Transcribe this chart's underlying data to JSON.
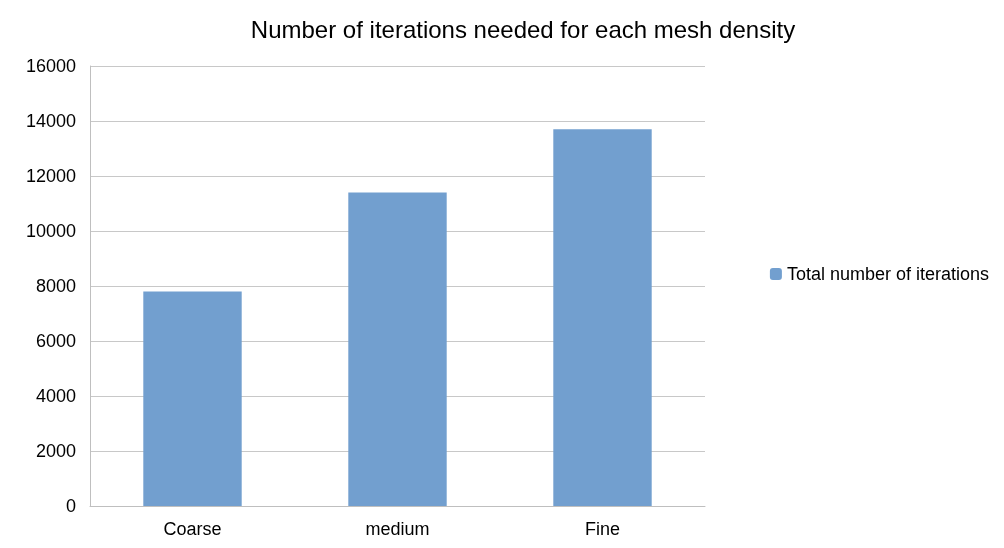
{
  "chart_data": {
    "type": "bar",
    "title": "Number of iterations needed for each mesh density",
    "categories": [
      "Coarse",
      "medium",
      "Fine"
    ],
    "series": [
      {
        "name": "Total number of iterations",
        "color": "#729fcf",
        "values": [
          7800,
          11400,
          13700
        ]
      }
    ],
    "ylim": [
      0,
      16000
    ],
    "yticks": [
      0,
      2000,
      4000,
      6000,
      8000,
      10000,
      12000,
      14000,
      16000
    ],
    "grid": "y",
    "legend": "right"
  }
}
